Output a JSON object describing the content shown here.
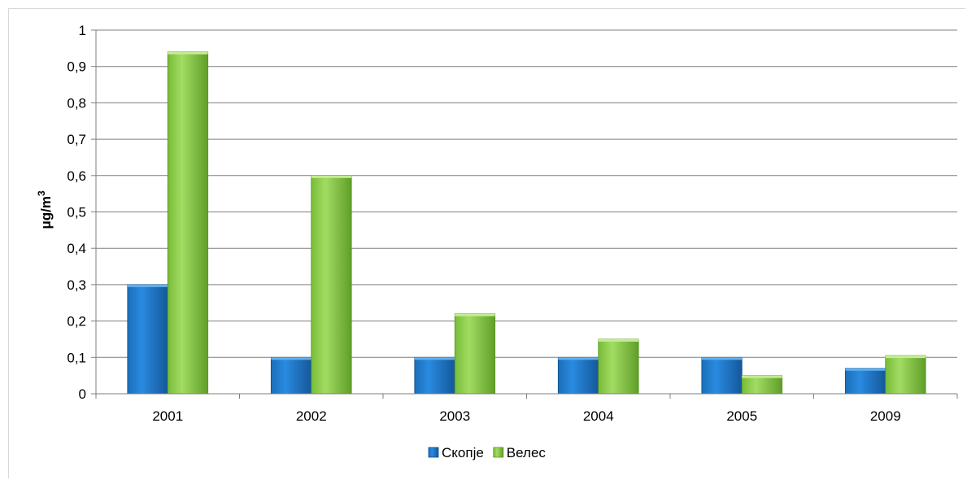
{
  "chart_data": {
    "type": "bar",
    "categories": [
      "2001",
      "2002",
      "2003",
      "2004",
      "2005",
      "2009"
    ],
    "series": [
      {
        "name": "Скопје",
        "values": [
          0.3,
          0.1,
          0.1,
          0.1,
          0.1,
          0.07
        ],
        "color": "#1f7fd0"
      },
      {
        "name": "Велес",
        "values": [
          0.94,
          0.6,
          0.22,
          0.15,
          0.05,
          0.105
        ],
        "color": "#8ed04a"
      }
    ],
    "yticks": [
      "0",
      "0,1",
      "0,2",
      "0,3",
      "0,4",
      "0,5",
      "0,6",
      "0,7",
      "0,8",
      "0,9",
      "1"
    ],
    "ylim": [
      0,
      1
    ],
    "ylabel": "μg/m3",
    "grid": true,
    "legend_position": "bottom-center"
  }
}
